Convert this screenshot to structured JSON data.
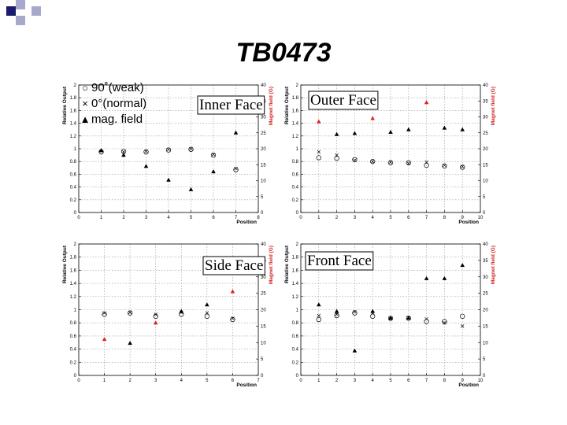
{
  "title": "TB0473",
  "legend": [
    {
      "symbol": "○",
      "label": "90˚(weak)"
    },
    {
      "symbol": "×",
      "label": "0°(normal)"
    },
    {
      "symbol": "▲",
      "label": "mag. field"
    }
  ],
  "colors": {
    "deco_dark": "#1a1a6e",
    "deco_light": "#a8a8cc",
    "field_marker_dark": "#000000",
    "field_marker_red": "#e02020",
    "right_axis": "#d02020"
  },
  "chart_data": [
    {
      "type": "scatter",
      "title": "Inner Face",
      "xlabel": "Position",
      "ylabel": "Relative Output",
      "y2label": "Magnet field (G)",
      "xlim": [
        0,
        8
      ],
      "ylim": [
        0,
        2
      ],
      "y2lim": [
        0,
        40
      ],
      "xticks": [
        "0",
        "1",
        "2",
        "3",
        "4",
        "5",
        "6",
        "7",
        "8"
      ],
      "yticks": [
        "0",
        "0.2",
        "0.4",
        "0.6",
        "0.8",
        "1",
        "1.2",
        "1.4",
        "1.6",
        "1.8",
        "2"
      ],
      "y2ticks": [
        "0",
        "5",
        "10",
        "15",
        "20",
        "25",
        "30",
        "35",
        "40"
      ],
      "grid": true,
      "series": [
        {
          "name": "90˚(weak)",
          "marker": "circle",
          "x": [
            1,
            2,
            3,
            4,
            5,
            6,
            7
          ],
          "y": [
            0.95,
            0.96,
            0.95,
            0.98,
            0.99,
            0.9,
            0.67
          ]
        },
        {
          "name": "0°(normal)",
          "marker": "cross",
          "x": [
            1,
            2,
            3,
            4,
            5,
            6,
            7
          ],
          "y": [
            0.96,
            0.95,
            0.96,
            0.99,
            1.0,
            0.91,
            0.69
          ]
        },
        {
          "name": "mag. field",
          "marker": "triangle",
          "axis": "right",
          "x": [
            1,
            2,
            3,
            4,
            5,
            6,
            7
          ],
          "y": [
            19.5,
            18.0,
            14.5,
            10.2,
            7.2,
            12.8,
            25.0
          ],
          "red": [
            false,
            false,
            false,
            false,
            false,
            false,
            false
          ]
        }
      ]
    },
    {
      "type": "scatter",
      "title": "Outer Face",
      "xlabel": "Position",
      "ylabel": "Relative Output",
      "y2label": "Magnet field (G)",
      "xlim": [
        0,
        10
      ],
      "ylim": [
        0,
        2
      ],
      "y2lim": [
        0,
        40
      ],
      "xticks": [
        "0",
        "1",
        "2",
        "3",
        "4",
        "5",
        "6",
        "7",
        "8",
        "9",
        "10"
      ],
      "yticks": [
        "0",
        "0.2",
        "0.4",
        "0.6",
        "0.8",
        "1",
        "1.2",
        "1.4",
        "1.6",
        "1.8",
        "2"
      ],
      "y2ticks": [
        "0",
        "5",
        "10",
        "15",
        "20",
        "25",
        "30",
        "35",
        "40"
      ],
      "grid": true,
      "series": [
        {
          "name": "90˚(weak)",
          "marker": "circle",
          "x": [
            1,
            2,
            3,
            4,
            5,
            6,
            7,
            8,
            9
          ],
          "y": [
            0.86,
            0.85,
            0.83,
            0.8,
            0.78,
            0.78,
            0.74,
            0.73,
            0.71
          ]
        },
        {
          "name": "0°(normal)",
          "marker": "cross",
          "x": [
            1,
            2,
            3,
            4,
            5,
            6,
            7,
            8,
            9
          ],
          "y": [
            0.95,
            0.9,
            0.82,
            0.8,
            0.79,
            0.77,
            0.79,
            0.74,
            0.72
          ]
        },
        {
          "name": "mag. field",
          "marker": "triangle",
          "axis": "right",
          "x": [
            1,
            2,
            3,
            4,
            5,
            6,
            7,
            8,
            9
          ],
          "y": [
            28.5,
            24.5,
            24.8,
            29.5,
            25.2,
            26.0,
            34.5,
            26.5,
            26.0
          ],
          "red": [
            true,
            false,
            false,
            true,
            false,
            false,
            true,
            false,
            false
          ]
        }
      ]
    },
    {
      "type": "scatter",
      "title": "Side Face",
      "xlabel": "Position",
      "ylabel": "Relative Output",
      "y2label": "Magnet field (G)",
      "xlim": [
        0,
        7
      ],
      "ylim": [
        0,
        2
      ],
      "y2lim": [
        0,
        40
      ],
      "xticks": [
        "0",
        "1",
        "2",
        "3",
        "4",
        "5",
        "6",
        "7"
      ],
      "yticks": [
        "0",
        "0.2",
        "0.4",
        "0.6",
        "0.8",
        "1",
        "1.2",
        "1.4",
        "1.6",
        "1.8",
        "2"
      ],
      "y2ticks": [
        "0",
        "5",
        "10",
        "15",
        "20",
        "25",
        "30",
        "35",
        "40"
      ],
      "grid": true,
      "series": [
        {
          "name": "90˚(weak)",
          "marker": "circle",
          "x": [
            1,
            2,
            3,
            4,
            5,
            6
          ],
          "y": [
            0.93,
            0.95,
            0.9,
            0.93,
            0.9,
            0.85
          ]
        },
        {
          "name": "0°(normal)",
          "marker": "cross",
          "x": [
            1,
            2,
            3,
            4,
            5,
            6
          ],
          "y": [
            0.95,
            0.96,
            0.93,
            0.96,
            0.95,
            0.87
          ]
        },
        {
          "name": "mag. field",
          "marker": "triangle",
          "axis": "right",
          "x": [
            1,
            2,
            3,
            4,
            5,
            6
          ],
          "y": [
            11.0,
            9.8,
            16.0,
            19.5,
            21.5,
            25.5
          ],
          "red": [
            true,
            false,
            true,
            false,
            false,
            true
          ]
        }
      ]
    },
    {
      "type": "scatter",
      "title": "Front Face",
      "xlabel": "Position",
      "ylabel": "Relative Output",
      "y2label": "Magnet field (G)",
      "xlim": [
        0,
        10
      ],
      "ylim": [
        0,
        2
      ],
      "y2lim": [
        0,
        40
      ],
      "xticks": [
        "0",
        "1",
        "2",
        "3",
        "4",
        "5",
        "6",
        "7",
        "8",
        "9",
        "10"
      ],
      "yticks": [
        "0",
        "0.2",
        "0.4",
        "0.6",
        "0.8",
        "1",
        "1.2",
        "1.4",
        "1.6",
        "1.8",
        "2"
      ],
      "y2ticks": [
        "0",
        "5",
        "10",
        "15",
        "20",
        "25",
        "30",
        "35",
        "40"
      ],
      "grid": true,
      "series": [
        {
          "name": "90˚(weak)",
          "marker": "circle",
          "x": [
            1,
            2,
            3,
            4,
            5,
            6,
            7,
            8,
            9
          ],
          "y": [
            0.85,
            0.91,
            0.95,
            0.9,
            0.87,
            0.87,
            0.82,
            0.82,
            0.9
          ]
        },
        {
          "name": "0°(normal)",
          "marker": "cross",
          "x": [
            1,
            2,
            3,
            4,
            5,
            6,
            7,
            8,
            9
          ],
          "y": [
            0.91,
            0.93,
            0.97,
            0.95,
            0.86,
            0.88,
            0.86,
            0.8,
            0.75
          ]
        },
        {
          "name": "mag. field",
          "marker": "triangle",
          "axis": "right",
          "x": [
            1,
            2,
            3,
            4,
            5,
            6,
            7,
            8,
            9
          ],
          "y": [
            21.5,
            19.5,
            7.5,
            19.5,
            17.5,
            17.5,
            29.5,
            29.5,
            33.5
          ],
          "red": [
            false,
            false,
            false,
            false,
            false,
            false,
            false,
            false,
            false
          ]
        }
      ]
    }
  ]
}
